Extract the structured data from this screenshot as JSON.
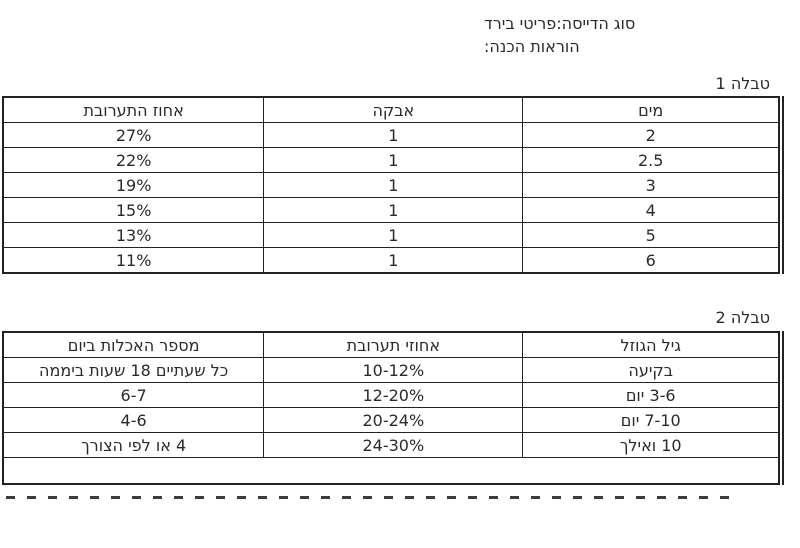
{
  "page": {
    "background": "#ffffff",
    "text_color": "#2a2a2a",
    "border_color": "#232323"
  },
  "notes": {
    "line1": "סוג הדייסה:פריטי בירד",
    "line2": "הוראות הכנה:"
  },
  "table1": {
    "caption": "טבלה 1",
    "headers": [
      "מים",
      "אבקה",
      "אחוז התערובת"
    ],
    "rows": [
      [
        "2",
        "1",
        "27%"
      ],
      [
        "2.5",
        "1",
        "22%"
      ],
      [
        "3",
        "1",
        "19%"
      ],
      [
        "4",
        "1",
        "15%"
      ],
      [
        "5",
        "1",
        "13%"
      ],
      [
        "6",
        "1",
        "11%"
      ]
    ]
  },
  "table2": {
    "caption": "טבלה 2",
    "headers": [
      "גיל הגוזל",
      "אחוזי תערובת",
      "מספר האכלות ביום"
    ],
    "rows": [
      [
        "בקיעה",
        "10-12%",
        "כל שעתיים 18 שעות ביממה"
      ],
      [
        "3-6 יום",
        "12-20%",
        "6-7"
      ],
      [
        "7-10 יום",
        "20-24%",
        "4-6"
      ],
      [
        "10 ואילך",
        "24-30%",
        "4 או לפי הצורך"
      ]
    ],
    "empty_row": ""
  }
}
